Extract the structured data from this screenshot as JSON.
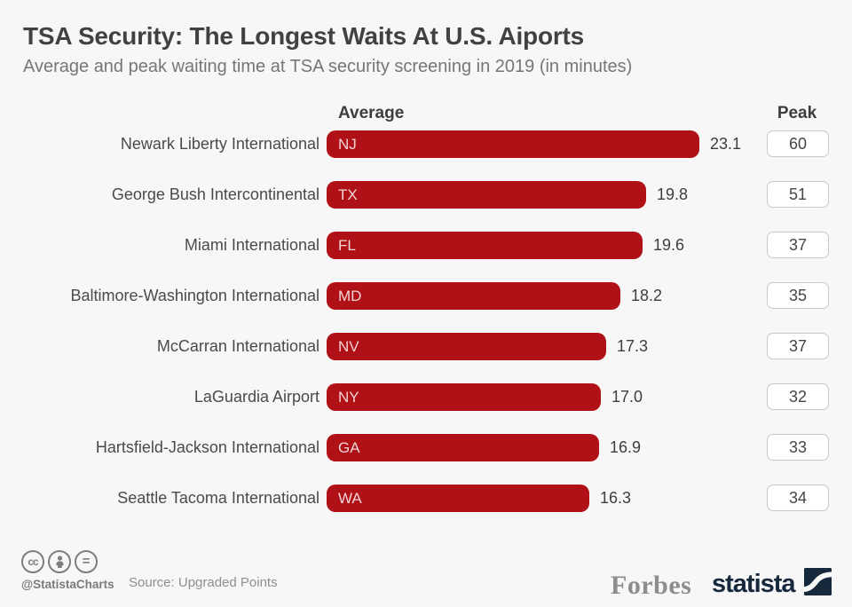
{
  "title": "TSA Security: The Longest Waits At U.S. Aiports",
  "subtitle": "Average and peak waiting time at TSA security screening in 2019 (in minutes)",
  "columns": {
    "average_label": "Average",
    "peak_label": "Peak"
  },
  "chart_data": {
    "type": "bar",
    "orientation": "horizontal",
    "title": "TSA Security: The Longest Waits At U.S. Aiports",
    "subtitle": "Average and peak waiting time at TSA security screening in 2019 (in minutes)",
    "unit": "minutes",
    "categories": [
      "Newark Liberty International",
      "George Bush Intercontinental",
      "Miami International",
      "Baltimore-Washington International",
      "McCarran International",
      "LaGuardia Airport",
      "Hartsfield-Jackson International",
      "Seattle Tacoma International"
    ],
    "state_labels": [
      "NJ",
      "TX",
      "FL",
      "MD",
      "NV",
      "NY",
      "GA",
      "WA"
    ],
    "series": [
      {
        "name": "Average",
        "values": [
          23.1,
          19.8,
          19.6,
          18.2,
          17.3,
          17.0,
          16.9,
          16.3
        ]
      },
      {
        "name": "Peak",
        "values": [
          60,
          51,
          37,
          35,
          37,
          32,
          33,
          34
        ]
      }
    ],
    "xlim": [
      0,
      23.1
    ],
    "grid": false,
    "legend_position": "none",
    "bar_color": "#b01116"
  },
  "footer": {
    "handle": "@StatistaCharts",
    "source": "Source: Upgraded Points",
    "license_icons": [
      "cc-icon",
      "attribution-icon",
      "no-derivatives-icon"
    ],
    "cc_text": "cc",
    "nd_text": "=",
    "brand_forbes": "Forbes",
    "brand_statista": "statista"
  },
  "colors": {
    "bar_red": "#b01116",
    "background": "#f7f7f7",
    "statista_navy": "#16283c",
    "forbes_gray": "#8d8d8d"
  }
}
